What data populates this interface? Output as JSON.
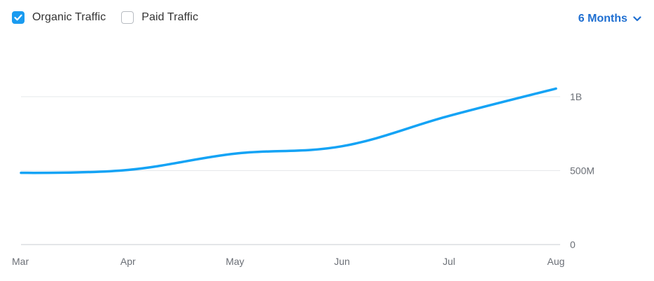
{
  "filters": {
    "organic": {
      "label": "Organic Traffic",
      "checked": true
    },
    "paid": {
      "label": "Paid Traffic",
      "checked": false
    }
  },
  "period": {
    "label": "6 Months"
  },
  "colors": {
    "accent": "#1a9bf0",
    "line": "#14a3f5",
    "grid": "#e6e8eb",
    "axis": "#c9ccd1",
    "period_link": "#1f6fd1"
  },
  "icons": {
    "checkbox": "check-icon",
    "dropdown": "chevron-down-icon"
  },
  "chart_data": {
    "type": "line",
    "title": "",
    "xlabel": "",
    "ylabel": "",
    "categories": [
      "Mar",
      "Apr",
      "May",
      "Jun",
      "Jul",
      "Aug"
    ],
    "series": [
      {
        "name": "Organic Traffic",
        "values": [
          485000000,
          505000000,
          615000000,
          665000000,
          870000000,
          1055000000
        ]
      }
    ],
    "y_ticks": [
      {
        "value": 0,
        "label": "0"
      },
      {
        "value": 500000000,
        "label": "500M"
      },
      {
        "value": 1000000000,
        "label": "1B"
      }
    ],
    "ylim": [
      0,
      1100000000
    ],
    "y_axis_position": "right",
    "grid": true,
    "legend": "top-left"
  }
}
